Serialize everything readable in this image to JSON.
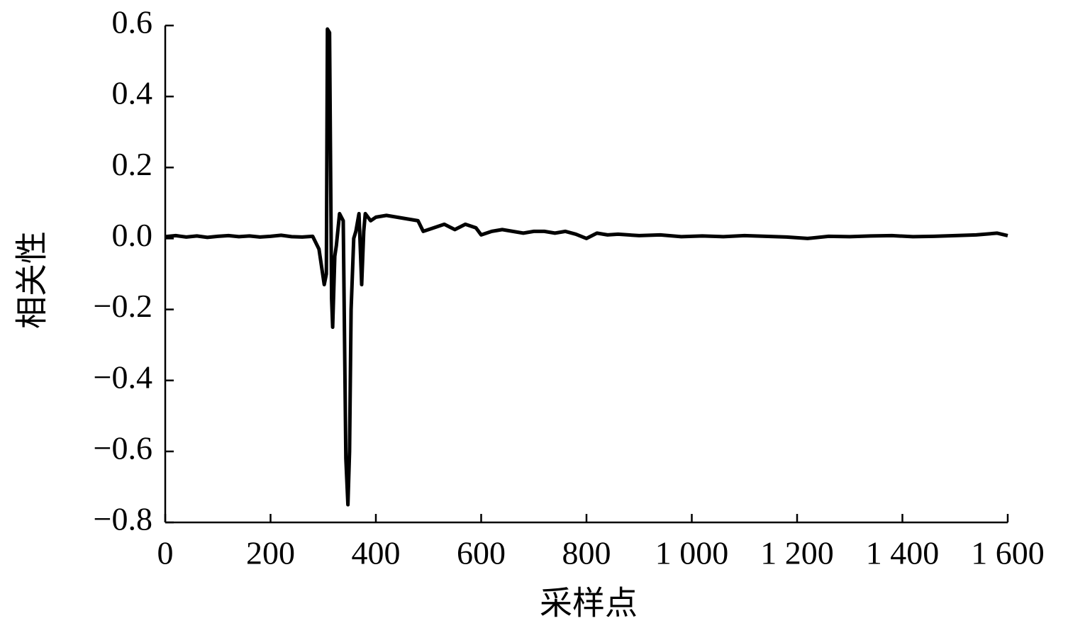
{
  "chart_data": {
    "type": "line",
    "x_label": "采样点",
    "y_label": "相关性",
    "x": [
      0,
      20,
      40,
      60,
      80,
      100,
      120,
      140,
      160,
      180,
      200,
      220,
      240,
      260,
      280,
      292,
      302,
      306,
      308,
      312,
      316,
      318,
      322,
      325,
      331,
      338,
      343,
      347,
      350,
      353,
      358,
      362,
      368,
      371,
      373,
      377,
      380,
      390,
      400,
      420,
      440,
      460,
      480,
      490,
      510,
      530,
      550,
      570,
      590,
      600,
      620,
      640,
      660,
      680,
      700,
      720,
      740,
      760,
      780,
      800,
      820,
      840,
      860,
      900,
      940,
      980,
      1020,
      1060,
      1100,
      1140,
      1180,
      1220,
      1260,
      1300,
      1340,
      1380,
      1420,
      1460,
      1500,
      1540,
      1580,
      1600
    ],
    "values": [
      0.005,
      0.008,
      0.004,
      0.007,
      0.003,
      0.006,
      0.008,
      0.005,
      0.007,
      0.004,
      0.006,
      0.009,
      0.005,
      0.004,
      0.006,
      -0.03,
      -0.13,
      -0.1,
      0.59,
      0.58,
      -0.17,
      -0.25,
      -0.05,
      -0.02,
      0.07,
      0.05,
      -0.62,
      -0.75,
      -0.6,
      -0.2,
      0.0,
      0.02,
      0.07,
      -0.05,
      -0.13,
      0.02,
      0.07,
      0.05,
      0.06,
      0.065,
      0.06,
      0.055,
      0.05,
      0.02,
      0.03,
      0.04,
      0.025,
      0.04,
      0.03,
      0.01,
      0.02,
      0.025,
      0.02,
      0.015,
      0.02,
      0.02,
      0.015,
      0.02,
      0.012,
      0.0,
      0.015,
      0.01,
      0.012,
      0.008,
      0.01,
      0.005,
      0.007,
      0.005,
      0.008,
      0.006,
      0.004,
      0.0,
      0.006,
      0.005,
      0.007,
      0.008,
      0.005,
      0.006,
      0.008,
      0.01,
      0.015,
      0.008
    ],
    "color": "#000000",
    "xlim": [
      0,
      1600
    ],
    "xticks": [
      0,
      200,
      400,
      600,
      800,
      {
        "value": 1000,
        "label": "1 000"
      },
      {
        "value": 1200,
        "label": "1 200"
      },
      {
        "value": 1400,
        "label": "1 400"
      },
      {
        "value": 1600,
        "label": "1 600"
      }
    ],
    "ylim": [
      -0.8,
      0.6
    ],
    "yticks": [
      {
        "value": -0.8,
        "label": "−0.8"
      },
      {
        "value": -0.6,
        "label": "−0.6"
      },
      {
        "value": -0.4,
        "label": "−0.4"
      },
      {
        "value": -0.2,
        "label": "−0.2"
      },
      {
        "value": 0,
        "label": "0.0"
      },
      0.2,
      0.4,
      0.6
    ],
    "grid": false
  }
}
